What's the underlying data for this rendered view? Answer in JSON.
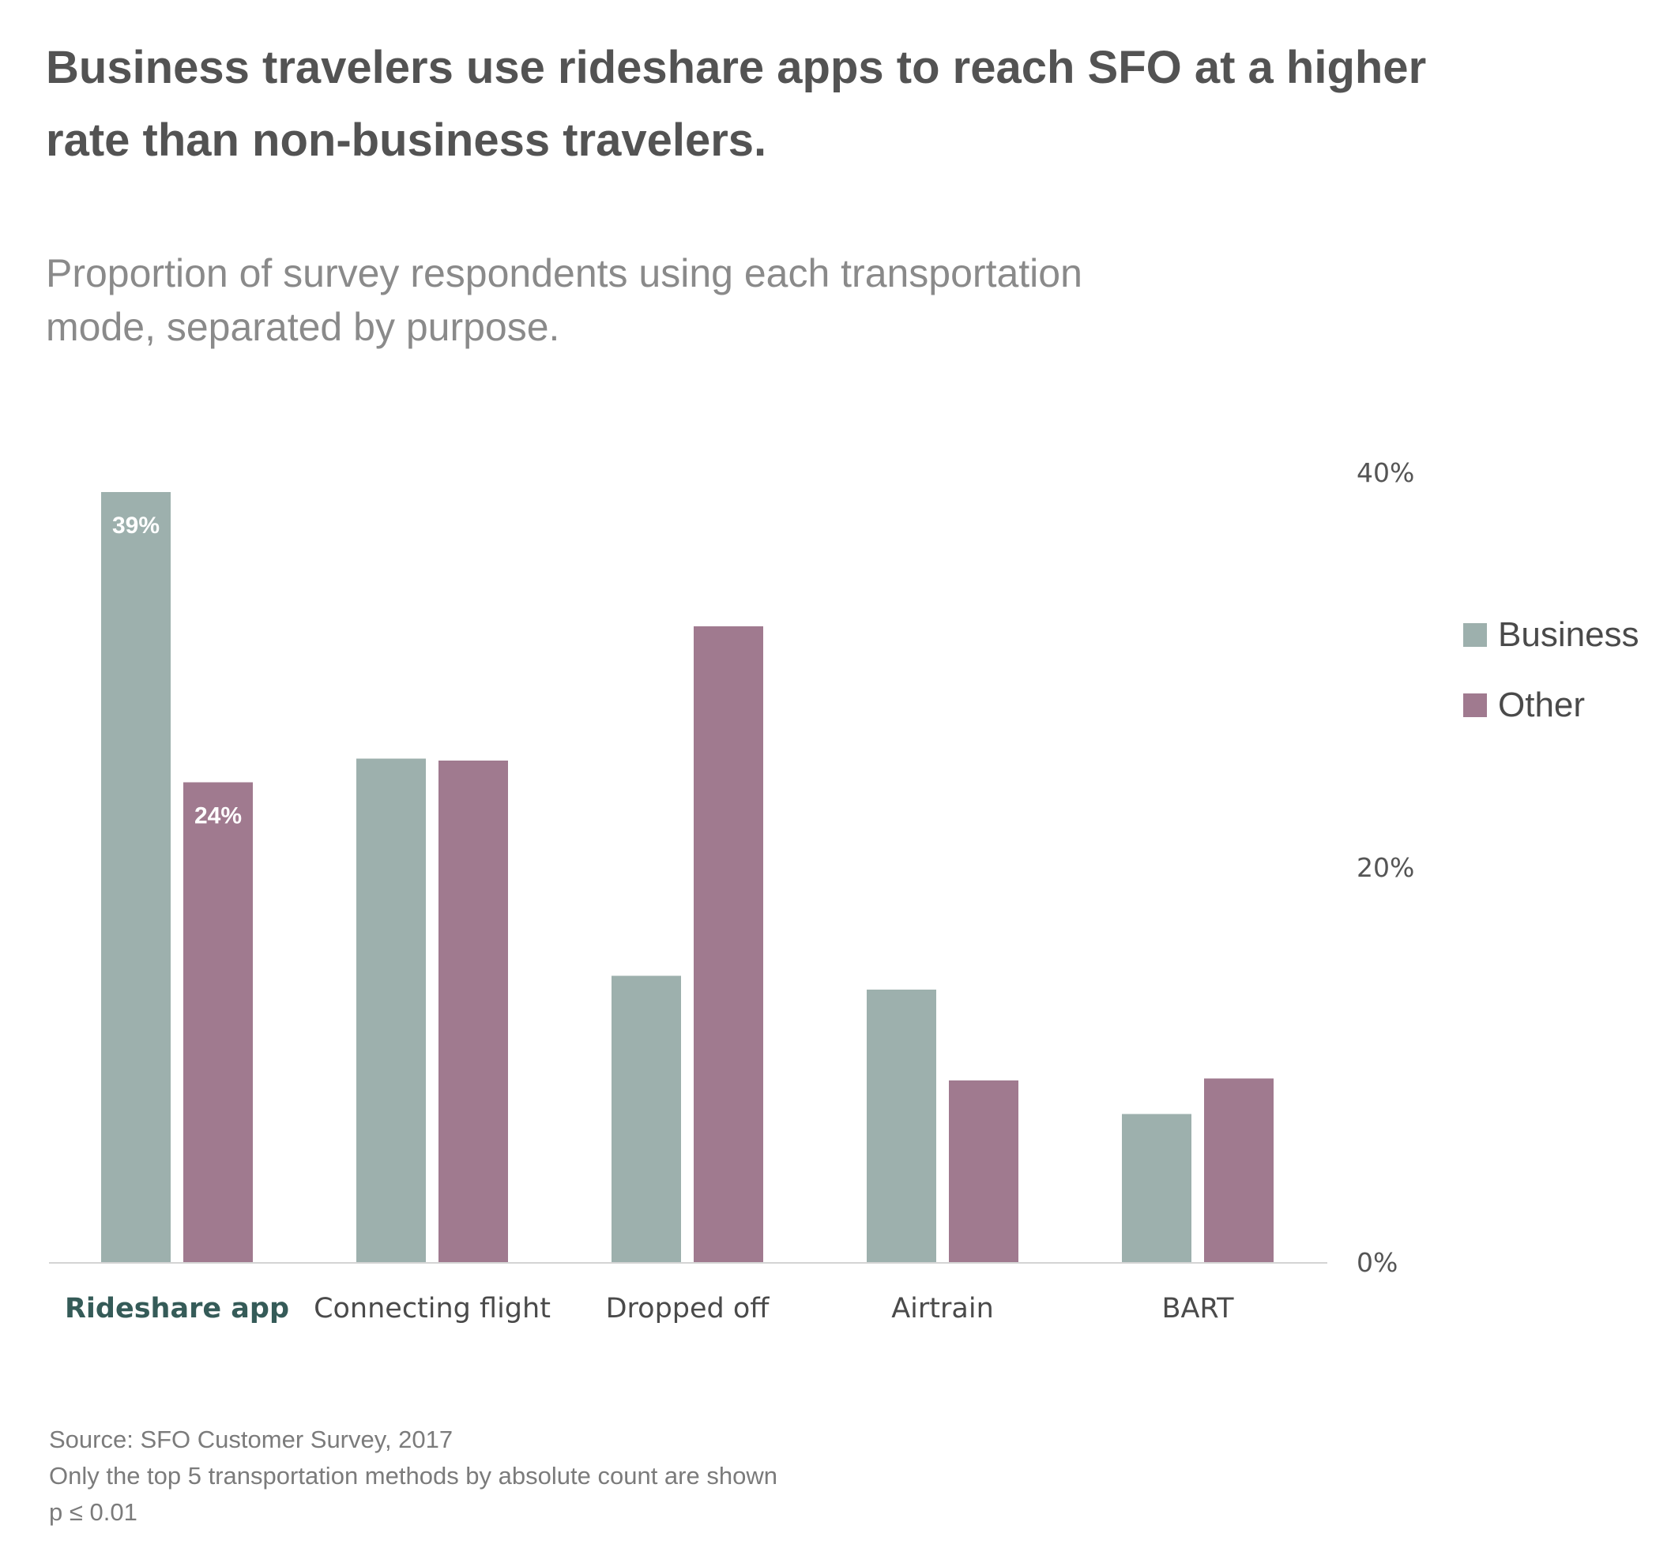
{
  "title": "Business travelers use rideshare apps to reach SFO at a higher rate than non-business travelers.",
  "subtitle": "Proportion of survey respondents using each transportation mode, separated by purpose.",
  "colors": {
    "business": "#9db0ad",
    "other": "#a07a8f",
    "highlight_category": "#355b58",
    "axis_line": "#d4d4d4",
    "tick_text": "#555555",
    "category_text": "#4a4a4a",
    "data_label": "#ffffff"
  },
  "legend": [
    {
      "label": "Business",
      "color": "#9db0ad"
    },
    {
      "label": "Other",
      "color": "#a07a8f"
    }
  ],
  "footer": {
    "source": "Source: SFO Customer Survey, 2017",
    "note": "Only the top 5 transportation methods by absolute count are shown",
    "significance": "p ≤ 0.01"
  },
  "chart_data": {
    "type": "bar",
    "categories": [
      "Rideshare app",
      "Connecting flight",
      "Dropped off",
      "Airtrain",
      "BART"
    ],
    "highlighted_category": "Rideshare app",
    "series": [
      {
        "name": "Business",
        "values": [
          39,
          25.5,
          14.5,
          13.8,
          7.5
        ],
        "data_labels": [
          "39%",
          "",
          "",
          "",
          ""
        ]
      },
      {
        "name": "Other",
        "values": [
          24.3,
          25.4,
          32.2,
          9.2,
          9.3
        ],
        "data_labels": [
          "24%",
          "",
          "",
          "",
          ""
        ]
      }
    ],
    "ylim": [
      0,
      40
    ],
    "yticks": [
      0,
      20,
      40
    ],
    "ytick_labels": [
      "0%",
      "20%",
      "40%"
    ],
    "y_axis_position": "right",
    "xlabel": "",
    "ylabel": "",
    "grid": false,
    "legend_position": "right"
  }
}
